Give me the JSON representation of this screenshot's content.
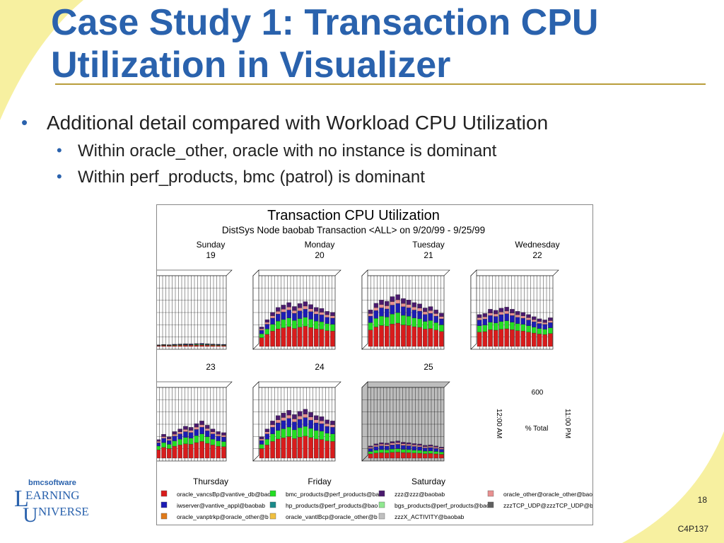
{
  "slide": {
    "title_line1": "Case Study 1: Transaction CPU",
    "title_line2": "Utilization in Visualizer",
    "bullet_main": "Additional detail compared with Workload CPU Utilization",
    "sub_bullets": [
      "Within oracle_other, oracle with no instance is dominant",
      "Within perf_products, bmc (patrol) is dominant"
    ],
    "page_number": "18",
    "slide_code": "C4P137"
  },
  "logo": {
    "brand": "bmcsoftware",
    "line1": "EARNING",
    "line2": "NIVERSE",
    "cap1": "L",
    "cap2": "U"
  },
  "colors": {
    "title": "#2a62ad",
    "rule": "#b89d3a",
    "swoosh": "#f7f0a0",
    "red": "#d81c1c",
    "green": "#22dd22",
    "navy": "#1c1cb4",
    "pink": "#e89090",
    "purple": "#4a1a6e",
    "teal": "#1a8a8a",
    "orange": "#e07a1a",
    "gray": "#c0c0c0"
  },
  "chart_data": {
    "type": "bar",
    "title": "Transaction CPU Utilization",
    "subtitle": "DistSys Node baobab Transaction <ALL> on 9/20/99 - 9/25/99",
    "panels": [
      {
        "day": "Sunday",
        "date": "19",
        "label_pos": "top",
        "level": 0.05
      },
      {
        "day": "Monday",
        "date": "20",
        "label_pos": "top",
        "level": 0.55
      },
      {
        "day": "Tuesday",
        "date": "21",
        "label_pos": "top",
        "level": 0.75
      },
      {
        "day": "Wednesday",
        "date": "22",
        "label_pos": "top",
        "level": 0.6
      },
      {
        "day": "Thursday",
        "date": "23",
        "label_pos": "bottom",
        "level": 0.6
      },
      {
        "day": "Friday",
        "date": "24",
        "label_pos": "bottom",
        "level": 0.6
      },
      {
        "day": "Saturday",
        "date": "25",
        "label_pos": "bottom",
        "level": 0.25
      }
    ],
    "axis_key": {
      "max_label": "600",
      "value_label": "% Total",
      "start_label": "12:00 AM",
      "end_label": "11:00 PM"
    },
    "legend": [
      {
        "label": "oracle_vancsBp@vantive_db@baob",
        "color": "#d81c1c"
      },
      {
        "label": "bmc_products@perf_products@ba",
        "color": "#22dd22"
      },
      {
        "label": "zzz@zzz@baobab",
        "color": "#4a1a6e"
      },
      {
        "label": "oracle_other@oracle_other@bao",
        "color": "#e89090"
      },
      {
        "label": "iwserver@vantive_appl@baobab",
        "color": "#1c1cb4"
      },
      {
        "label": "hp_products@perf_products@bao",
        "color": "#1a8a8a"
      },
      {
        "label": "bgs_products@perf_products@bac",
        "color": "#90e890"
      },
      {
        "label": "zzzTCP_UDP@zzzTCP_UDP@b",
        "color": "#606060"
      },
      {
        "label": "oracle_vanptrkp@oracle_other@b",
        "color": "#e07a1a"
      },
      {
        "label": "oracle_vantlBcp@oracle_other@b",
        "color": "#f0c040"
      },
      {
        "label": "zzzX_ACTIVITY@baobab",
        "color": "#c0c0c0"
      }
    ]
  }
}
